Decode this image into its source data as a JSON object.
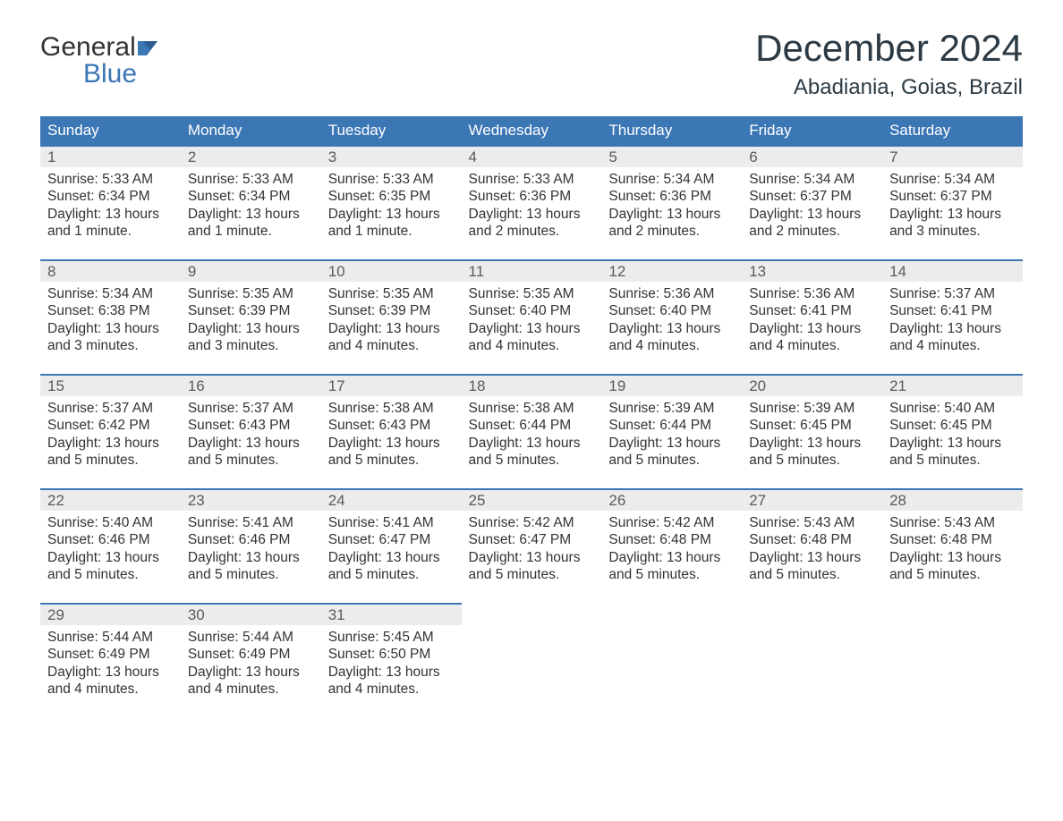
{
  "brand": {
    "line1": "General",
    "line2": "Blue",
    "accent_color": "#3b76b5",
    "text_color": "#333333"
  },
  "title": "December 2024",
  "location": "Abadiania, Goias, Brazil",
  "colors": {
    "header_bg": "#3b76b5",
    "header_fg": "#ffffff",
    "daynum_bg": "#ececec",
    "row_divider": "#3b76b5",
    "body_text": "#333333",
    "page_bg": "#ffffff"
  },
  "fonts": {
    "title_size_pt": 32,
    "location_size_pt": 18,
    "header_size_pt": 13,
    "body_size_pt": 12
  },
  "weekdays": [
    "Sunday",
    "Monday",
    "Tuesday",
    "Wednesday",
    "Thursday",
    "Friday",
    "Saturday"
  ],
  "weeks": [
    [
      {
        "day": "1",
        "sunrise": "Sunrise: 5:33 AM",
        "sunset": "Sunset: 6:34 PM",
        "dl1": "Daylight: 13 hours",
        "dl2": "and 1 minute."
      },
      {
        "day": "2",
        "sunrise": "Sunrise: 5:33 AM",
        "sunset": "Sunset: 6:34 PM",
        "dl1": "Daylight: 13 hours",
        "dl2": "and 1 minute."
      },
      {
        "day": "3",
        "sunrise": "Sunrise: 5:33 AM",
        "sunset": "Sunset: 6:35 PM",
        "dl1": "Daylight: 13 hours",
        "dl2": "and 1 minute."
      },
      {
        "day": "4",
        "sunrise": "Sunrise: 5:33 AM",
        "sunset": "Sunset: 6:36 PM",
        "dl1": "Daylight: 13 hours",
        "dl2": "and 2 minutes."
      },
      {
        "day": "5",
        "sunrise": "Sunrise: 5:34 AM",
        "sunset": "Sunset: 6:36 PM",
        "dl1": "Daylight: 13 hours",
        "dl2": "and 2 minutes."
      },
      {
        "day": "6",
        "sunrise": "Sunrise: 5:34 AM",
        "sunset": "Sunset: 6:37 PM",
        "dl1": "Daylight: 13 hours",
        "dl2": "and 2 minutes."
      },
      {
        "day": "7",
        "sunrise": "Sunrise: 5:34 AM",
        "sunset": "Sunset: 6:37 PM",
        "dl1": "Daylight: 13 hours",
        "dl2": "and 3 minutes."
      }
    ],
    [
      {
        "day": "8",
        "sunrise": "Sunrise: 5:34 AM",
        "sunset": "Sunset: 6:38 PM",
        "dl1": "Daylight: 13 hours",
        "dl2": "and 3 minutes."
      },
      {
        "day": "9",
        "sunrise": "Sunrise: 5:35 AM",
        "sunset": "Sunset: 6:39 PM",
        "dl1": "Daylight: 13 hours",
        "dl2": "and 3 minutes."
      },
      {
        "day": "10",
        "sunrise": "Sunrise: 5:35 AM",
        "sunset": "Sunset: 6:39 PM",
        "dl1": "Daylight: 13 hours",
        "dl2": "and 4 minutes."
      },
      {
        "day": "11",
        "sunrise": "Sunrise: 5:35 AM",
        "sunset": "Sunset: 6:40 PM",
        "dl1": "Daylight: 13 hours",
        "dl2": "and 4 minutes."
      },
      {
        "day": "12",
        "sunrise": "Sunrise: 5:36 AM",
        "sunset": "Sunset: 6:40 PM",
        "dl1": "Daylight: 13 hours",
        "dl2": "and 4 minutes."
      },
      {
        "day": "13",
        "sunrise": "Sunrise: 5:36 AM",
        "sunset": "Sunset: 6:41 PM",
        "dl1": "Daylight: 13 hours",
        "dl2": "and 4 minutes."
      },
      {
        "day": "14",
        "sunrise": "Sunrise: 5:37 AM",
        "sunset": "Sunset: 6:41 PM",
        "dl1": "Daylight: 13 hours",
        "dl2": "and 4 minutes."
      }
    ],
    [
      {
        "day": "15",
        "sunrise": "Sunrise: 5:37 AM",
        "sunset": "Sunset: 6:42 PM",
        "dl1": "Daylight: 13 hours",
        "dl2": "and 5 minutes."
      },
      {
        "day": "16",
        "sunrise": "Sunrise: 5:37 AM",
        "sunset": "Sunset: 6:43 PM",
        "dl1": "Daylight: 13 hours",
        "dl2": "and 5 minutes."
      },
      {
        "day": "17",
        "sunrise": "Sunrise: 5:38 AM",
        "sunset": "Sunset: 6:43 PM",
        "dl1": "Daylight: 13 hours",
        "dl2": "and 5 minutes."
      },
      {
        "day": "18",
        "sunrise": "Sunrise: 5:38 AM",
        "sunset": "Sunset: 6:44 PM",
        "dl1": "Daylight: 13 hours",
        "dl2": "and 5 minutes."
      },
      {
        "day": "19",
        "sunrise": "Sunrise: 5:39 AM",
        "sunset": "Sunset: 6:44 PM",
        "dl1": "Daylight: 13 hours",
        "dl2": "and 5 minutes."
      },
      {
        "day": "20",
        "sunrise": "Sunrise: 5:39 AM",
        "sunset": "Sunset: 6:45 PM",
        "dl1": "Daylight: 13 hours",
        "dl2": "and 5 minutes."
      },
      {
        "day": "21",
        "sunrise": "Sunrise: 5:40 AM",
        "sunset": "Sunset: 6:45 PM",
        "dl1": "Daylight: 13 hours",
        "dl2": "and 5 minutes."
      }
    ],
    [
      {
        "day": "22",
        "sunrise": "Sunrise: 5:40 AM",
        "sunset": "Sunset: 6:46 PM",
        "dl1": "Daylight: 13 hours",
        "dl2": "and 5 minutes."
      },
      {
        "day": "23",
        "sunrise": "Sunrise: 5:41 AM",
        "sunset": "Sunset: 6:46 PM",
        "dl1": "Daylight: 13 hours",
        "dl2": "and 5 minutes."
      },
      {
        "day": "24",
        "sunrise": "Sunrise: 5:41 AM",
        "sunset": "Sunset: 6:47 PM",
        "dl1": "Daylight: 13 hours",
        "dl2": "and 5 minutes."
      },
      {
        "day": "25",
        "sunrise": "Sunrise: 5:42 AM",
        "sunset": "Sunset: 6:47 PM",
        "dl1": "Daylight: 13 hours",
        "dl2": "and 5 minutes."
      },
      {
        "day": "26",
        "sunrise": "Sunrise: 5:42 AM",
        "sunset": "Sunset: 6:48 PM",
        "dl1": "Daylight: 13 hours",
        "dl2": "and 5 minutes."
      },
      {
        "day": "27",
        "sunrise": "Sunrise: 5:43 AM",
        "sunset": "Sunset: 6:48 PM",
        "dl1": "Daylight: 13 hours",
        "dl2": "and 5 minutes."
      },
      {
        "day": "28",
        "sunrise": "Sunrise: 5:43 AM",
        "sunset": "Sunset: 6:48 PM",
        "dl1": "Daylight: 13 hours",
        "dl2": "and 5 minutes."
      }
    ],
    [
      {
        "day": "29",
        "sunrise": "Sunrise: 5:44 AM",
        "sunset": "Sunset: 6:49 PM",
        "dl1": "Daylight: 13 hours",
        "dl2": "and 4 minutes."
      },
      {
        "day": "30",
        "sunrise": "Sunrise: 5:44 AM",
        "sunset": "Sunset: 6:49 PM",
        "dl1": "Daylight: 13 hours",
        "dl2": "and 4 minutes."
      },
      {
        "day": "31",
        "sunrise": "Sunrise: 5:45 AM",
        "sunset": "Sunset: 6:50 PM",
        "dl1": "Daylight: 13 hours",
        "dl2": "and 4 minutes."
      },
      null,
      null,
      null,
      null
    ]
  ]
}
